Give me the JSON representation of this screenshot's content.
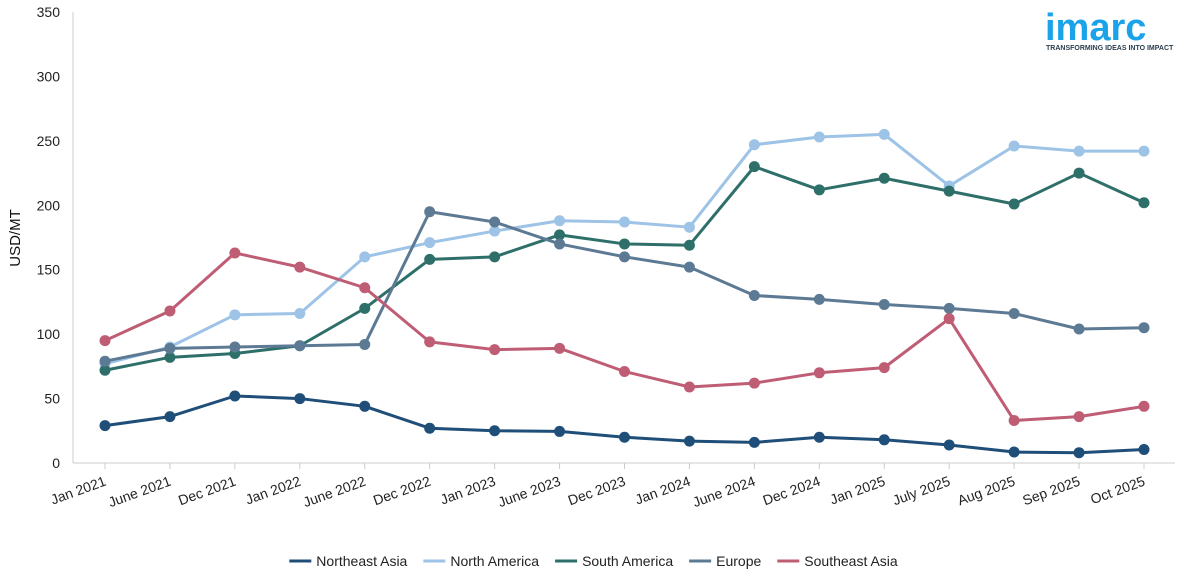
{
  "chart_data": {
    "type": "line",
    "ylabel": "USD/MT",
    "ylim": [
      0,
      350
    ],
    "y_ticks": [
      "0",
      "50",
      "100",
      "150",
      "200",
      "250",
      "300",
      "350"
    ],
    "grid": false,
    "legend_position": "bottom-center",
    "categories": [
      "Jan 2021",
      "June 2021",
      "Dec 2021",
      "Jan 2022",
      "June 2022",
      "Dec 2022",
      "Jan 2023",
      "June 2023",
      "Dec 2023",
      "Jan 2024",
      "June 2024",
      "Dec 2024",
      "Jan 2025",
      "July 2025",
      "Aug 2025",
      "Sep 2025",
      "Oct 2025"
    ],
    "series": [
      {
        "name": "Northeast Asia",
        "color": "#1f4e79",
        "values": [
          29,
          36,
          52,
          50,
          44,
          27,
          25,
          24.5,
          20,
          17,
          16,
          20,
          18,
          14,
          8.5,
          8,
          10.5
        ]
      },
      {
        "name": "North America",
        "color": "#9dc3e6",
        "values": [
          77,
          90,
          115,
          116,
          160,
          171,
          180,
          188,
          187,
          183,
          247,
          253,
          255,
          215,
          246,
          242,
          242
        ]
      },
      {
        "name": "South America",
        "color": "#2e7069",
        "values": [
          72,
          82,
          85,
          91,
          120,
          158,
          160,
          177,
          170,
          169,
          230,
          212,
          221,
          211,
          201,
          225,
          202
        ]
      },
      {
        "name": "Europe",
        "color": "#5d7a94",
        "values": [
          79,
          89,
          90,
          91,
          92,
          195,
          187,
          170,
          160,
          152,
          130,
          127,
          123,
          120,
          116,
          104,
          105
        ]
      },
      {
        "name": "Southeast Asia",
        "color": "#bf5d75",
        "values": [
          95,
          118,
          163,
          152,
          136,
          94,
          88,
          89,
          71,
          59,
          62,
          70,
          74,
          112,
          33,
          36,
          44
        ]
      }
    ]
  },
  "logo": {
    "brand": "imarc",
    "tagline": "TRANSFORMING IDEAS INTO IMPACT",
    "color": "#1aa3e8"
  }
}
